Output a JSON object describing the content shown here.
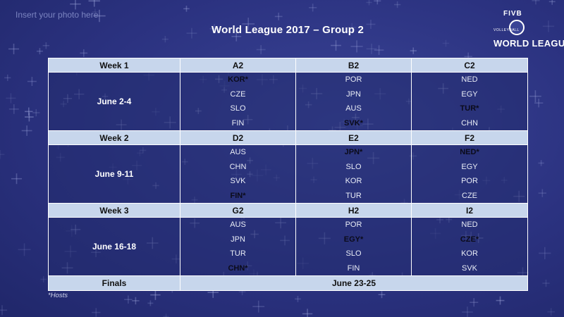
{
  "placeholder": "Insert your photo here",
  "title": "World League  2017  –  Group 2",
  "logo": {
    "fivb": "FIVB",
    "sub": "VOLLEYBALL",
    "name": "WORLD LEAGUE"
  },
  "weeks": [
    {
      "label": "Week 1",
      "dates": "June 2-4",
      "pools": [
        {
          "name": "A2",
          "teams": [
            {
              "t": "KOR*",
              "host": true
            },
            {
              "t": "CZE"
            },
            {
              "t": "SLO"
            },
            {
              "t": "FIN"
            }
          ]
        },
        {
          "name": "B2",
          "teams": [
            {
              "t": "POR"
            },
            {
              "t": "JPN"
            },
            {
              "t": "AUS"
            },
            {
              "t": "SVK*",
              "host": true
            }
          ]
        },
        {
          "name": "C2",
          "teams": [
            {
              "t": "NED"
            },
            {
              "t": "EGY"
            },
            {
              "t": "TUR*",
              "host": true
            },
            {
              "t": "CHN"
            }
          ]
        }
      ]
    },
    {
      "label": "Week 2",
      "dates": "June 9-11",
      "pools": [
        {
          "name": "D2",
          "teams": [
            {
              "t": "AUS"
            },
            {
              "t": "CHN"
            },
            {
              "t": "SVK"
            },
            {
              "t": "FIN*",
              "host": true
            }
          ]
        },
        {
          "name": "E2",
          "teams": [
            {
              "t": "JPN*",
              "host": true
            },
            {
              "t": "SLO"
            },
            {
              "t": "KOR"
            },
            {
              "t": "TUR"
            }
          ]
        },
        {
          "name": "F2",
          "teams": [
            {
              "t": "NED*",
              "host": true
            },
            {
              "t": "EGY"
            },
            {
              "t": "POR"
            },
            {
              "t": "CZE"
            }
          ]
        }
      ]
    },
    {
      "label": "Week 3",
      "dates": "June 16-18",
      "pools": [
        {
          "name": "G2",
          "teams": [
            {
              "t": "AUS"
            },
            {
              "t": "JPN"
            },
            {
              "t": "TUR"
            },
            {
              "t": "CHN*",
              "host": true
            }
          ]
        },
        {
          "name": "H2",
          "teams": [
            {
              "t": "POR"
            },
            {
              "t": "EGY*",
              "host": true
            },
            {
              "t": "SLO"
            },
            {
              "t": "FIN"
            }
          ]
        },
        {
          "name": "I2",
          "teams": [
            {
              "t": "NED"
            },
            {
              "t": "CZE*",
              "host": true
            },
            {
              "t": "KOR"
            },
            {
              "t": "SVK"
            }
          ]
        }
      ]
    }
  ],
  "finals": {
    "label": "Finals",
    "dates": "June 23-25"
  },
  "footnote": "*Hosts",
  "colors": {
    "background": "#2b3280",
    "header_row": "#c7d6ec",
    "host_text": "#0b0b1a"
  }
}
